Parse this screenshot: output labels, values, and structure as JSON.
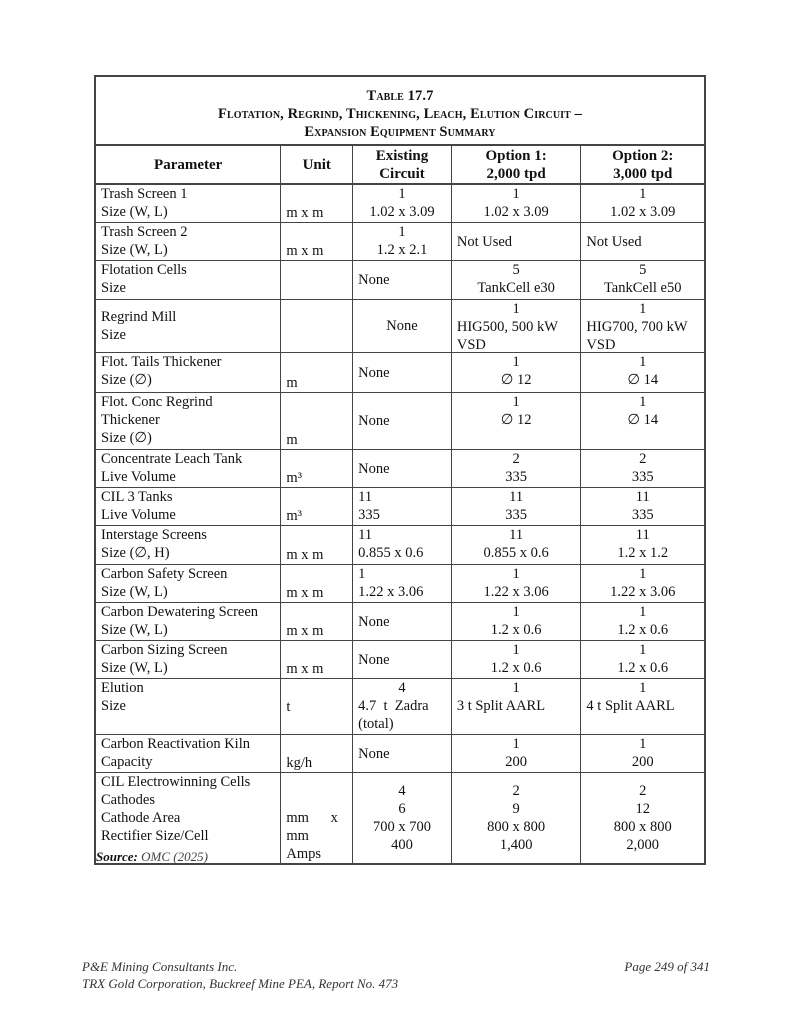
{
  "table": {
    "title_lines": [
      "Table 17.7",
      "Flotation, Regrind, Thickening, Leach, Elution Circuit –",
      "Expansion Equipment Summary"
    ],
    "headers": [
      [
        "Parameter"
      ],
      [
        "Unit"
      ],
      [
        "Existing",
        "Circuit"
      ],
      [
        "Option 1:",
        "2,000 tpd"
      ],
      [
        "Option 2:",
        "3,000 tpd"
      ]
    ],
    "rows": [
      [
        [
          "Trash Screen 1",
          "Size (W, L)"
        ],
        [
          "m x m"
        ],
        [
          "1",
          "1.02 x 3.09"
        ],
        [
          "1",
          "1.02 x 3.09"
        ],
        [
          "1",
          "1.02 x 3.09"
        ]
      ],
      [
        [
          "Trash Screen 2",
          "Size (W, L)"
        ],
        [
          "m x m"
        ],
        [
          "1",
          "1.2 x 2.1"
        ],
        [
          "Not Used"
        ],
        [
          "Not Used"
        ]
      ],
      [
        [
          "Flotation Cells",
          "Size"
        ],
        [],
        [
          "None"
        ],
        [
          "5",
          "TankCell e30"
        ],
        [
          "5",
          "TankCell e50"
        ]
      ],
      [
        [
          "Regrind Mill",
          "Size"
        ],
        [],
        [
          "None"
        ],
        [
          "1",
          "HIG500, 500 kW",
          "VSD"
        ],
        [
          "1",
          "HIG700, 700 kW",
          "VSD"
        ]
      ],
      [
        [
          "Flot. Tails Thickener",
          "Size (∅)"
        ],
        [
          "m"
        ],
        [
          "None"
        ],
        [
          "1",
          "∅ 12"
        ],
        [
          "1",
          "∅ 14"
        ]
      ],
      [
        [
          "Flot. Conc Regrind",
          "Thickener",
          "Size (∅)"
        ],
        [
          "m"
        ],
        [
          "None"
        ],
        [
          "1",
          "∅ 12"
        ],
        [
          "1",
          "∅ 14"
        ]
      ],
      [
        [
          "Concentrate Leach Tank",
          "Live Volume"
        ],
        [
          "m³"
        ],
        [
          "None"
        ],
        [
          "2",
          "335"
        ],
        [
          "2",
          "335"
        ]
      ],
      [
        [
          "CIL 3 Tanks",
          "Live Volume"
        ],
        [
          "m³"
        ],
        [
          "11",
          "335"
        ],
        [
          "11",
          "335"
        ],
        [
          "11",
          "335"
        ]
      ],
      [
        [
          "Interstage Screens",
          "Size (∅, H)"
        ],
        [
          "m x m"
        ],
        [
          "11",
          "0.855 x 0.6"
        ],
        [
          "11",
          "0.855 x 0.6"
        ],
        [
          "11",
          "1.2 x 1.2"
        ]
      ],
      [
        [
          "Carbon Safety Screen",
          "Size (W, L)"
        ],
        [
          "m x m"
        ],
        [
          "1",
          "1.22 x 3.06"
        ],
        [
          "1",
          "1.22 x 3.06"
        ],
        [
          "1",
          "1.22 x 3.06"
        ]
      ],
      [
        [
          "Carbon Dewatering Screen",
          "Size (W, L)"
        ],
        [
          "m x m"
        ],
        [
          "None"
        ],
        [
          "1",
          "1.2 x 0.6"
        ],
        [
          "1",
          "1.2 x 0.6"
        ]
      ],
      [
        [
          "Carbon Sizing Screen",
          "Size (W, L)"
        ],
        [
          "m x m"
        ],
        [
          "None"
        ],
        [
          "1",
          "1.2 x 0.6"
        ],
        [
          "1",
          "1.2 x 0.6"
        ]
      ],
      [
        [
          "Elution",
          "Size"
        ],
        [
          "t"
        ],
        [
          "4",
          "4.7  t  Zadra",
          "(total)"
        ],
        [
          "1",
          "3 t Split AARL"
        ],
        [
          "1",
          "4 t Split AARL"
        ]
      ],
      [
        [
          "Carbon Reactivation Kiln",
          "Capacity"
        ],
        [
          "kg/h"
        ],
        [
          "None"
        ],
        [
          "1",
          "200"
        ],
        [
          "1",
          "200"
        ]
      ],
      [
        [
          "CIL Electrowinning Cells",
          "Cathodes",
          "Cathode Area",
          "Rectifier Size/Cell"
        ],
        [
          "mm      x",
          "mm",
          "Amps"
        ],
        [
          "4",
          "6",
          "700 x 700",
          "400"
        ],
        [
          "2",
          "9",
          "800 x 800",
          "1,400"
        ],
        [
          "2",
          "12",
          "800 x 800",
          "2,000"
        ]
      ]
    ]
  },
  "source": {
    "label": "Source:",
    "text": "OMC (2025)"
  },
  "footer": {
    "company": "P&E Mining Consultants Inc.",
    "report": "TRX Gold Corporation, Buckreef Mine PEA, Report No. 473",
    "page": "Page 249 of 341"
  }
}
